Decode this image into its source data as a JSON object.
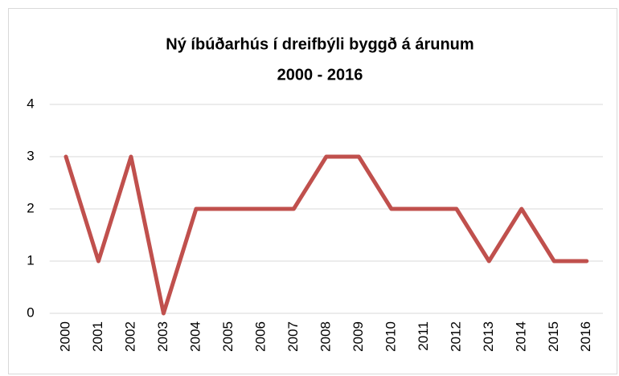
{
  "chart_data": {
    "type": "line",
    "title": [
      "Ný íbúðarhús í dreifbýli byggð á árunum",
      "2000 - 2016"
    ],
    "categories": [
      "2000",
      "2001",
      "2002",
      "2003",
      "2004",
      "2005",
      "2006",
      "2007",
      "2008",
      "2009",
      "2010",
      "2011",
      "2012",
      "2013",
      "2014",
      "2015",
      "2016"
    ],
    "values": [
      3,
      1,
      3,
      0,
      2,
      2,
      2,
      2,
      3,
      3,
      2,
      2,
      2,
      1,
      2,
      1,
      1
    ],
    "color": "#c0504d",
    "ylim": [
      0,
      4
    ],
    "yticks": [
      0,
      1,
      2,
      3,
      4
    ],
    "grid": true
  }
}
